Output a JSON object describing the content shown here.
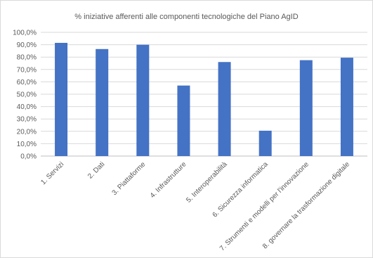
{
  "chart_data": {
    "type": "bar",
    "title": "% iniziative afferenti alle componenti tecnologiche del Piano AgID",
    "categories": [
      "1. Servizi",
      "2. Dati",
      "3. Piattaforme",
      "4. Infrastrutture",
      "5. Interoperabilità",
      "6. Sicurezza informatica",
      "7. Strumenti e modelli per l'innovazione",
      "8. governare la trasformazione digitale"
    ],
    "values": [
      91.5,
      86.5,
      90.0,
      57.0,
      76.0,
      20.5,
      77.5,
      79.5
    ],
    "ylim": [
      0,
      100
    ],
    "yticks": [
      "0,0%",
      "10,0%",
      "20,0%",
      "30,0%",
      "40,0%",
      "50,0%",
      "60,0%",
      "70,0%",
      "80,0%",
      "90,0%",
      "100,0%"
    ],
    "xlabel": "",
    "ylabel": "",
    "bar_color": "#4472C4",
    "grid": true,
    "legend": false
  }
}
